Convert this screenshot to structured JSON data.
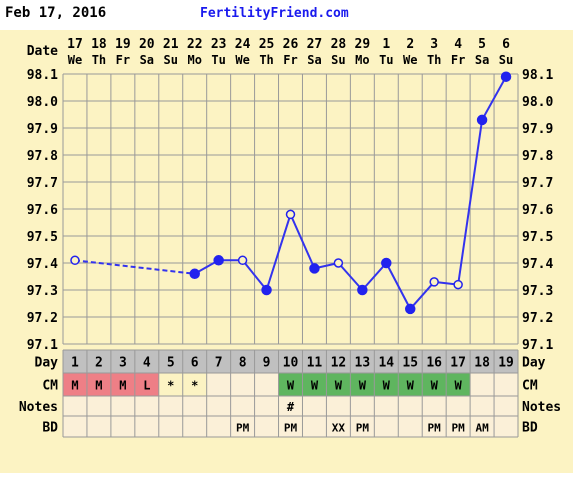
{
  "header": {
    "date": "Feb 17, 2016",
    "site": "FertilityFriend.com"
  },
  "row_labels": {
    "date": "Date",
    "day": "Day",
    "cm": "CM",
    "notes": "Notes",
    "bd": "BD"
  },
  "colors": {
    "background": "#fcf3c3",
    "grid": "#999999",
    "line": "#3333ee",
    "marker": "#2222ee",
    "site_link": "#1a1aee",
    "row_gray": "#c0c0c0",
    "cm_pink": "#ee7f86",
    "cm_green": "#5fb55f",
    "cm_cream": "#fbf0d8"
  },
  "chart_data": {
    "type": "line",
    "dates": [
      "17",
      "18",
      "19",
      "20",
      "21",
      "22",
      "23",
      "24",
      "25",
      "26",
      "27",
      "28",
      "29",
      "1",
      "2",
      "3",
      "4",
      "5",
      "6"
    ],
    "weekdays": [
      "We",
      "Th",
      "Fr",
      "Sa",
      "Su",
      "Mo",
      "Tu",
      "We",
      "Th",
      "Fr",
      "Sa",
      "Su",
      "Mo",
      "Tu",
      "We",
      "Th",
      "Fr",
      "Sa",
      "Su"
    ],
    "cycle_days": [
      "1",
      "2",
      "3",
      "4",
      "5",
      "6",
      "7",
      "8",
      "9",
      "10",
      "11",
      "12",
      "13",
      "14",
      "15",
      "16",
      "17",
      "18",
      "19"
    ],
    "ylim": [
      97.1,
      98.1
    ],
    "yticks": [
      "98.1",
      "98.0",
      "97.9",
      "97.8",
      "97.7",
      "97.6",
      "97.5",
      "97.4",
      "97.3",
      "97.2",
      "97.1"
    ],
    "grid": true,
    "temps": [
      {
        "day": 1,
        "value": 97.41,
        "marker": "open"
      },
      {
        "day": 6,
        "value": 97.36,
        "marker": "filled"
      },
      {
        "day": 7,
        "value": 97.41,
        "marker": "filled"
      },
      {
        "day": 8,
        "value": 97.41,
        "marker": "open"
      },
      {
        "day": 9,
        "value": 97.3,
        "marker": "filled"
      },
      {
        "day": 10,
        "value": 97.58,
        "marker": "open"
      },
      {
        "day": 11,
        "value": 97.38,
        "marker": "filled"
      },
      {
        "day": 12,
        "value": 97.4,
        "marker": "open"
      },
      {
        "day": 13,
        "value": 97.3,
        "marker": "filled"
      },
      {
        "day": 14,
        "value": 97.4,
        "marker": "filled"
      },
      {
        "day": 15,
        "value": 97.23,
        "marker": "filled"
      },
      {
        "day": 16,
        "value": 97.33,
        "marker": "open"
      },
      {
        "day": 17,
        "value": 97.32,
        "marker": "open"
      },
      {
        "day": 18,
        "value": 97.93,
        "marker": "filled"
      },
      {
        "day": 19,
        "value": 98.09,
        "marker": "filled"
      }
    ],
    "cm": [
      {
        "text": "M",
        "color": "pink"
      },
      {
        "text": "M",
        "color": "pink"
      },
      {
        "text": "M",
        "color": "pink"
      },
      {
        "text": "L",
        "color": "pink"
      },
      {
        "text": "*",
        "color": "none"
      },
      {
        "text": "*",
        "color": "none"
      },
      {
        "text": "",
        "color": "cream"
      },
      {
        "text": "",
        "color": "cream"
      },
      {
        "text": "",
        "color": "cream"
      },
      {
        "text": "W",
        "color": "green"
      },
      {
        "text": "W",
        "color": "green"
      },
      {
        "text": "W",
        "color": "green"
      },
      {
        "text": "W",
        "color": "green"
      },
      {
        "text": "W",
        "color": "green"
      },
      {
        "text": "W",
        "color": "green"
      },
      {
        "text": "W",
        "color": "green"
      },
      {
        "text": "W",
        "color": "green"
      },
      {
        "text": "",
        "color": "cream"
      },
      {
        "text": "",
        "color": "cream"
      }
    ],
    "notes": [
      "",
      "",
      "",
      "",
      "",
      "",
      "",
      "",
      "",
      "#",
      "",
      "",
      "",
      "",
      "",
      "",
      "",
      "",
      ""
    ],
    "bd": [
      "",
      "",
      "",
      "",
      "",
      "",
      "",
      "PM",
      "",
      "PM",
      "",
      "XX",
      "PM",
      "",
      "",
      "PM",
      "PM",
      "AM",
      ""
    ]
  }
}
